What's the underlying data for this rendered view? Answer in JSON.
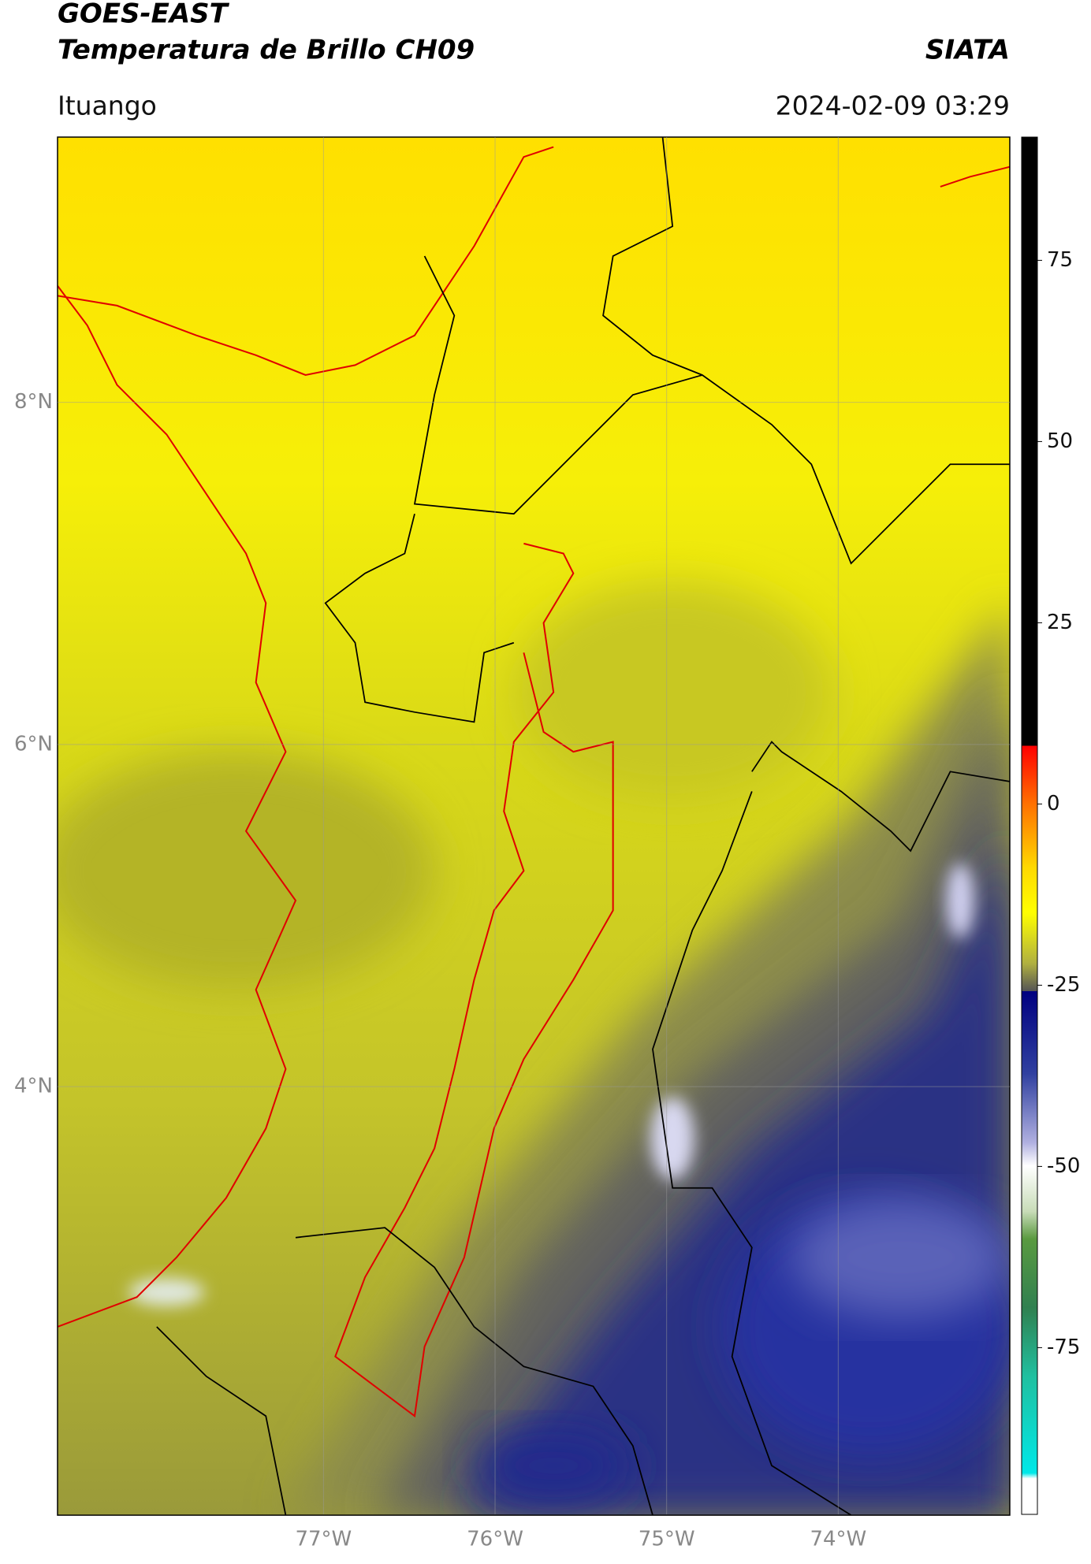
{
  "header": {
    "title": "GOES-EAST",
    "subtitle": "Temperatura de Brillo CH09",
    "credit": "SIATA",
    "location": "Ituango",
    "datetime": "2024-02-09 03:29"
  },
  "map": {
    "xlim": [
      -78.55,
      -73.0
    ],
    "ylim": [
      1.5,
      9.55
    ],
    "grid": true,
    "xticks": [
      {
        "value": -77,
        "label": "77°W"
      },
      {
        "value": -76,
        "label": "76°W"
      },
      {
        "value": -75,
        "label": "75°W"
      },
      {
        "value": -74,
        "label": "74°W"
      }
    ],
    "yticks": [
      {
        "value": 8,
        "label": "8°N"
      },
      {
        "value": 6,
        "label": "6°N"
      },
      {
        "value": 4,
        "label": "4°N"
      }
    ]
  },
  "colorbar": {
    "lim": [
      -98,
      92
    ],
    "ticks": [
      75,
      50,
      25,
      0,
      -25,
      -50,
      -75
    ]
  }
}
